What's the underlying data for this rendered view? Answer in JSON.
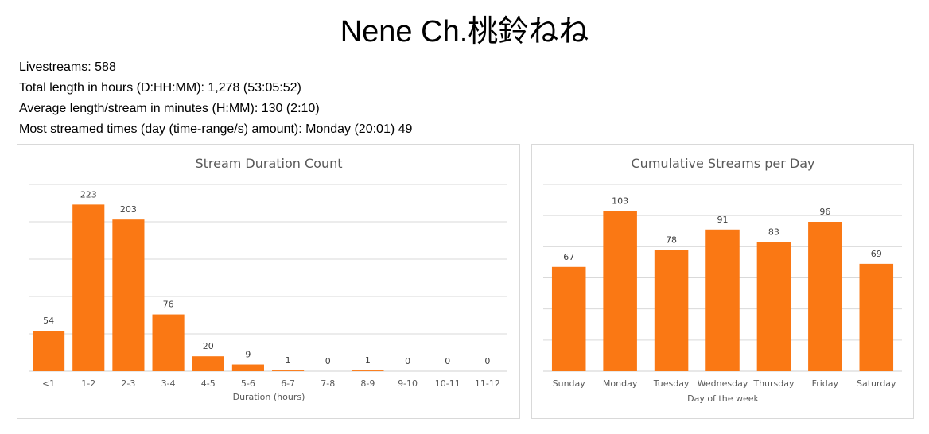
{
  "page_title": "Nene Ch.桃鈴ねね",
  "stats": [
    "Livestreams: 588",
    "Total length in hours (D:HH:MM): 1,278 (53:05:52)",
    "Average length/stream in minutes (H:MM): 130 (2:10)",
    "Most streamed times (day (time-range/s) amount): Monday (20:01) 49"
  ],
  "chart_data": [
    {
      "type": "bar",
      "title": "Stream Duration Count",
      "xlabel": "Duration (hours)",
      "ylabel": "",
      "categories": [
        "<1",
        "1-2",
        "2-3",
        "3-4",
        "4-5",
        "5-6",
        "6-7",
        "7-8",
        "8-9",
        "9-10",
        "10-11",
        "11-12"
      ],
      "values": [
        54,
        223,
        203,
        76,
        20,
        9,
        1,
        0,
        1,
        0,
        0,
        0
      ],
      "ylim": [
        0,
        250
      ],
      "grid": true,
      "bar_color": "#fa7814"
    },
    {
      "type": "bar",
      "title": "Cumulative Streams per Day",
      "xlabel": "Day of the week",
      "ylabel": "",
      "categories": [
        "Sunday",
        "Monday",
        "Tuesday",
        "Wednesday",
        "Thursday",
        "Friday",
        "Saturday"
      ],
      "values": [
        67,
        103,
        78,
        91,
        83,
        96,
        69
      ],
      "ylim": [
        0,
        120
      ],
      "grid": true,
      "bar_color": "#fa7814"
    }
  ]
}
